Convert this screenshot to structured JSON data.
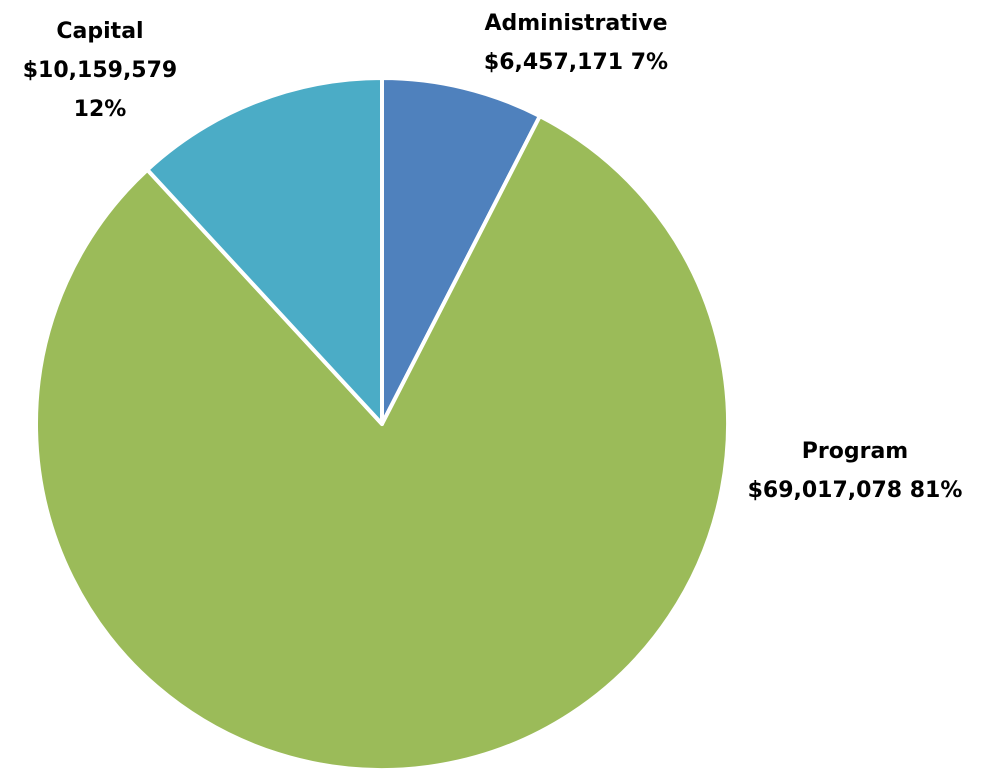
{
  "chart_data": {
    "type": "pie",
    "title": "",
    "slices": [
      {
        "name": "Administrative",
        "value": 6457171,
        "value_label": "$6,457,171",
        "percent_label": "7%",
        "color": "#4F81BD"
      },
      {
        "name": "Program",
        "value": 69017078,
        "value_label": "$69,017,078",
        "percent_label": "81%",
        "color": "#9BBB59"
      },
      {
        "name": "Capital",
        "value": 10159579,
        "value_label": "$10,159,579",
        "percent_label": "12%",
        "color": "#4BACC6"
      }
    ],
    "start_angle": "12 o'clock",
    "direction": "clockwise",
    "slice_border_color": "#FFFFFF",
    "legend": "none"
  }
}
